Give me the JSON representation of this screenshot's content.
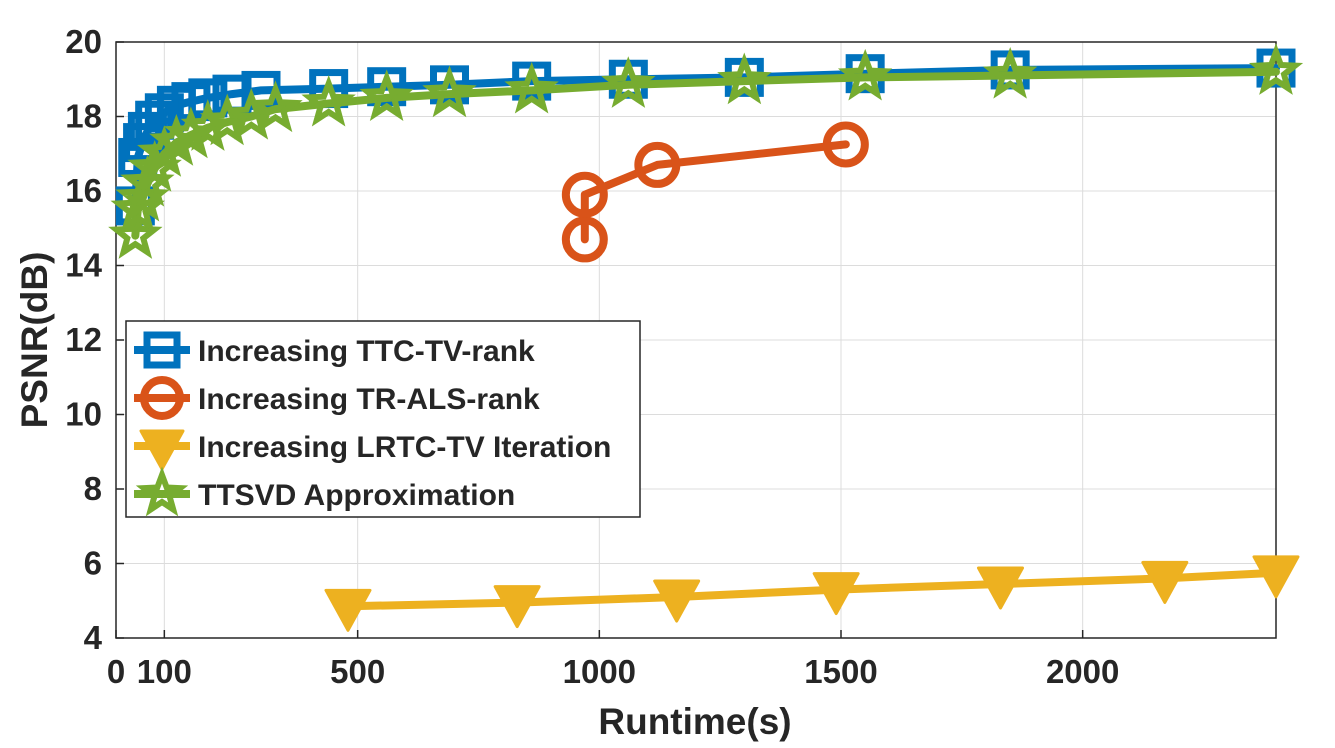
{
  "chart_data": {
    "type": "line",
    "title": "",
    "xlabel": "Runtime(s)",
    "ylabel": "PSNR(dB)",
    "xlim": [
      0,
      2400
    ],
    "ylim": [
      4,
      20
    ],
    "grid": true,
    "legend_position": "left-middle",
    "x_ticks": [
      0,
      100,
      500,
      1000,
      1500,
      2000
    ],
    "x_tick_labels": [
      "0",
      "100",
      "500",
      "1000",
      "1500",
      "2000"
    ],
    "y_ticks": [
      4,
      6,
      8,
      10,
      12,
      14,
      16,
      18,
      20
    ],
    "y_tick_labels": [
      "4",
      "6",
      "8",
      "10",
      "12",
      "14",
      "16",
      "18",
      "20"
    ],
    "series": [
      {
        "name": "Increasing TTC-TV-rank",
        "color": "#0072BD",
        "marker": "square",
        "x": [
          40,
          45,
          55,
          65,
          80,
          100,
          125,
          155,
          190,
          240,
          300,
          440,
          560,
          690,
          860,
          1060,
          1300,
          1550,
          1850,
          2400
        ],
        "y": [
          15.6,
          16.9,
          17.3,
          17.6,
          17.9,
          18.1,
          18.3,
          18.4,
          18.5,
          18.6,
          18.7,
          18.75,
          18.8,
          18.85,
          18.95,
          19.0,
          19.05,
          19.15,
          19.25,
          19.3
        ]
      },
      {
        "name": "Increasing TR-ALS-rank",
        "color": "#D95319",
        "marker": "circle",
        "x": [
          970,
          970,
          1120,
          1510
        ],
        "y": [
          14.7,
          15.9,
          16.7,
          17.25
        ]
      },
      {
        "name": "Increasing LRTC-TV Iteration",
        "color": "#EDB120",
        "marker": "triangle-down",
        "x": [
          480,
          830,
          1160,
          1490,
          1830,
          2170,
          2400
        ],
        "y": [
          4.85,
          4.95,
          5.1,
          5.3,
          5.45,
          5.6,
          5.75
        ]
      },
      {
        "name": "TTSVD Approximation",
        "color": "#77AC30",
        "marker": "star",
        "x": [
          40,
          45,
          55,
          65,
          80,
          100,
          125,
          155,
          190,
          230,
          280,
          330,
          440,
          560,
          690,
          860,
          1060,
          1300,
          1550,
          1850,
          2400
        ],
        "y": [
          14.8,
          15.5,
          15.8,
          16.2,
          16.6,
          17.0,
          17.3,
          17.5,
          17.7,
          17.85,
          18.0,
          18.2,
          18.35,
          18.5,
          18.6,
          18.7,
          18.85,
          18.95,
          19.05,
          19.1,
          19.2
        ]
      }
    ]
  }
}
